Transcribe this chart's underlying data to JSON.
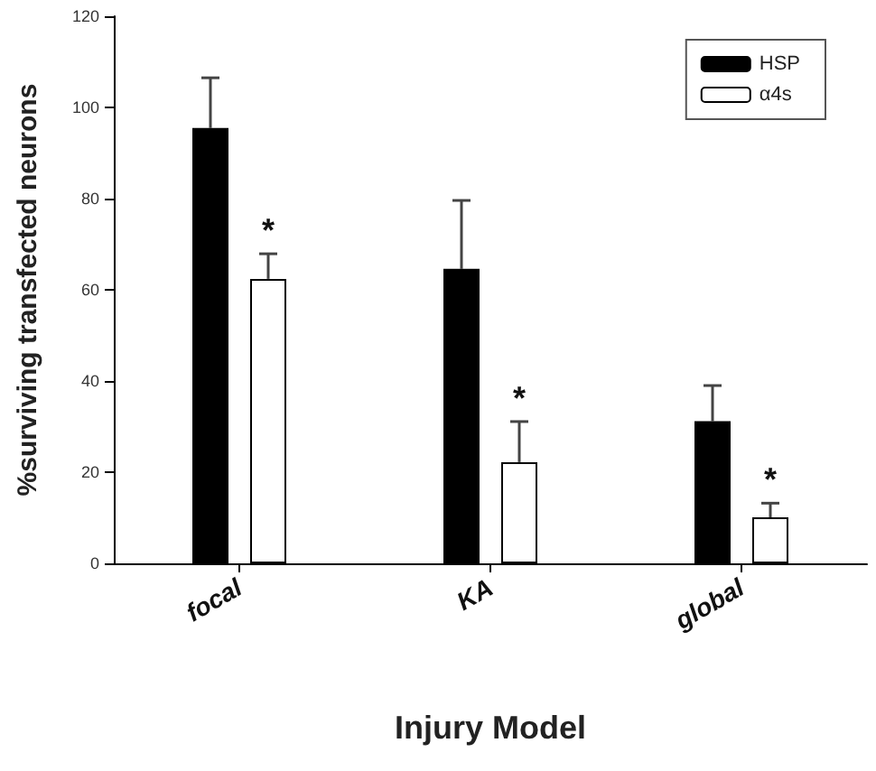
{
  "chart_data": {
    "type": "bar",
    "xlabel": "Injury Model",
    "ylabel": "%surviving transfected neurons",
    "categories": [
      "focal",
      "KA",
      "global"
    ],
    "series": [
      {
        "name": "HSP",
        "color": "#000000",
        "values": [
          95.5,
          64.6,
          31.2
        ],
        "errors": [
          [
            95.5,
            106.5
          ],
          [
            64.6,
            79.6
          ],
          [
            31.2,
            39
          ]
        ]
      },
      {
        "name": "α4s",
        "color": "#ffffff",
        "values": [
          62.4,
          22.2,
          10.1
        ],
        "errors": [
          [
            62.4,
            67.9
          ],
          [
            22.2,
            31.1
          ],
          [
            10.1,
            13.2
          ]
        ]
      }
    ],
    "annotations": [
      "*",
      "*",
      "*"
    ],
    "ylim": [
      0,
      120
    ],
    "yticks": [
      0,
      20,
      40,
      60,
      80,
      100,
      120
    ],
    "grid": false,
    "legend": "top right"
  }
}
